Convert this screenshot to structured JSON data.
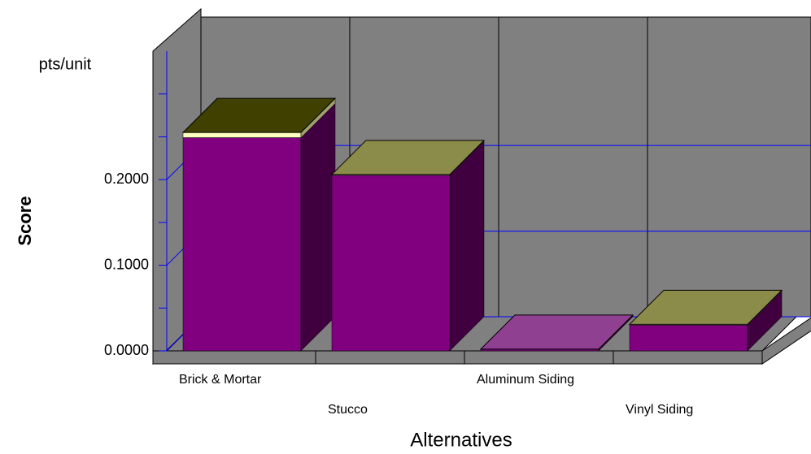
{
  "chart_data": {
    "type": "bar3d",
    "y_unit_label": "pts/unit",
    "y_axis_label": "Score",
    "x_axis_label": "Alternatives",
    "categories": [
      "Brick & Mortar",
      "Stucco",
      "Aluminum Siding",
      "Vinyl Siding"
    ],
    "series": [
      {
        "color": "#800080",
        "values": [
          0.249,
          0.205,
          0.002,
          0.03
        ]
      },
      {
        "color": "#ffffc0",
        "values": [
          0.006,
          0.001,
          0,
          0.001
        ]
      }
    ],
    "stacked": true,
    "ylim": [
      0,
      0.35
    ],
    "yticks": [
      {
        "value": 0,
        "label": "0.0000"
      },
      {
        "value": 0.1,
        "label": "0.1000"
      },
      {
        "value": 0.2,
        "label": "0.2000"
      }
    ],
    "minor_yticks": [
      0.05,
      0.15,
      0.25,
      0.3
    ],
    "grid": true
  }
}
